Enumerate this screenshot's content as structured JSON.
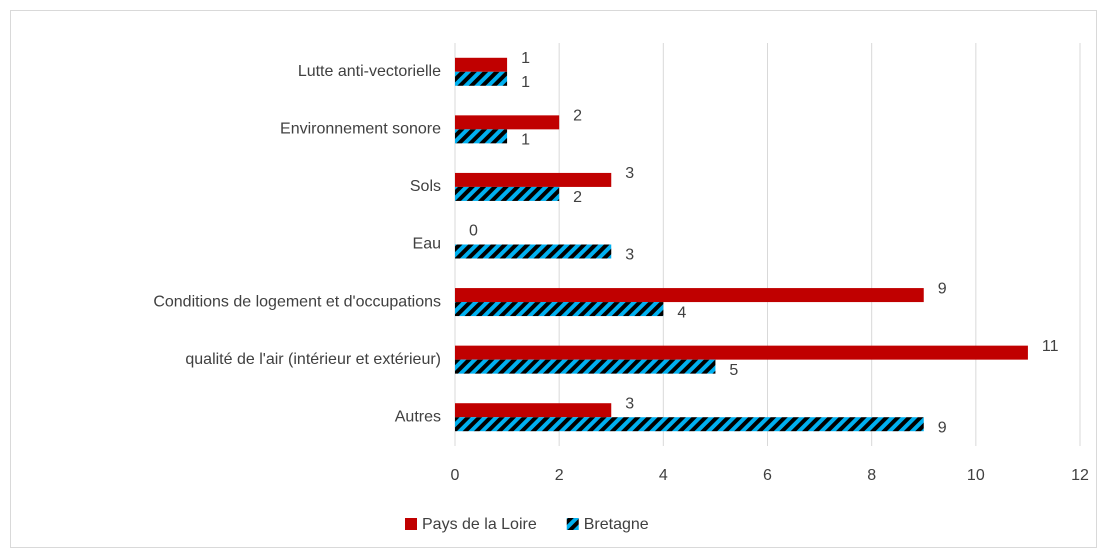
{
  "chart_data": {
    "type": "bar",
    "orientation": "horizontal",
    "categories": [
      "Lutte anti-vectorielle",
      "Environnement sonore",
      "Sols",
      "Eau",
      "Conditions de logement et d'occupations",
      "qualité de l'air (intérieur et extérieur)",
      "Autres"
    ],
    "series": [
      {
        "name": "Pays de la Loire",
        "color": "#c00000",
        "values": [
          1,
          2,
          3,
          0,
          9,
          11,
          3
        ]
      },
      {
        "name": "Bretagne",
        "color": "#00b0f0",
        "hatch": true,
        "values": [
          1,
          1,
          2,
          3,
          4,
          5,
          9
        ]
      }
    ],
    "xlim": [
      0,
      12
    ],
    "xticks": [
      0,
      2,
      4,
      6,
      8,
      10,
      12
    ],
    "grid": true,
    "legend": "bottom"
  }
}
